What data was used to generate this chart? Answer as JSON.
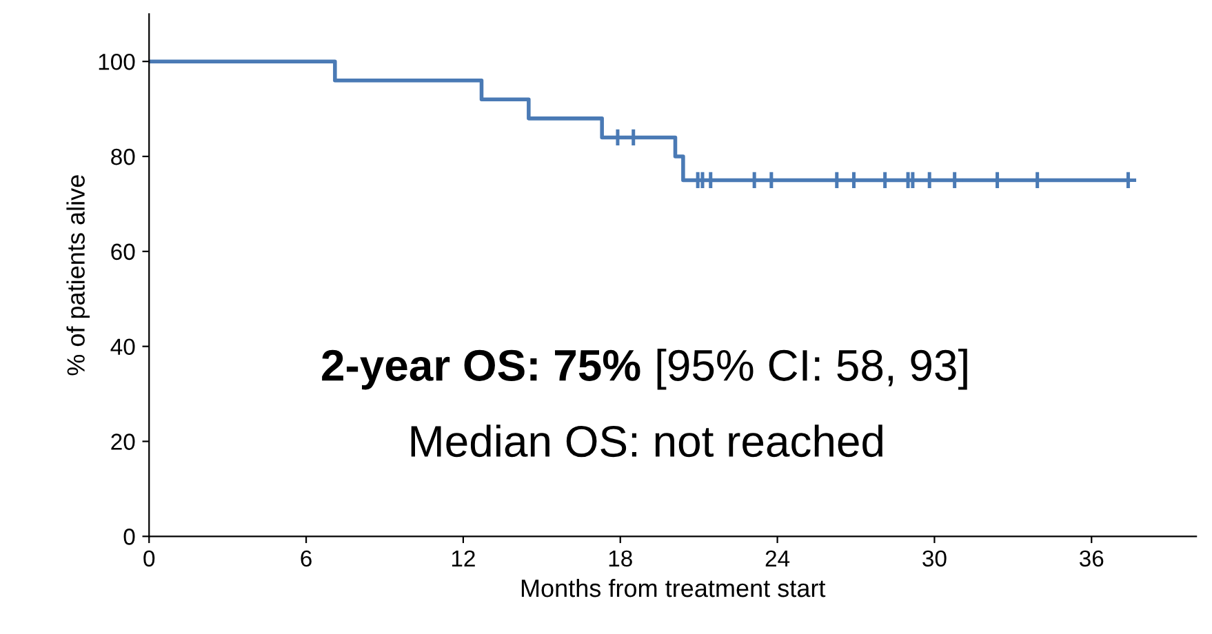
{
  "chart_data": {
    "type": "step",
    "xlabel": "Months from treatment start",
    "ylabel": "% of patients alive",
    "xlim": [
      0,
      40
    ],
    "xticks": [
      0,
      6,
      12,
      18,
      24,
      30,
      36
    ],
    "ylim": [
      0,
      110
    ],
    "yticks": [
      0,
      20,
      40,
      60,
      80,
      100
    ],
    "grid": false,
    "legend": false,
    "series": [
      {
        "color": "#4a7ab5",
        "marker": "none",
        "x": [
          0,
          7.1,
          12.7,
          14.5,
          17.3,
          20.1,
          20.4,
          37.4
        ],
        "values": [
          100,
          96,
          92,
          88,
          84,
          80,
          75,
          75
        ]
      },
      {
        "type": "scatter",
        "color": "#4a7ab5",
        "marker": "cross",
        "x": [
          17.9,
          18.5,
          20.96,
          21.14,
          21.45,
          23.12,
          23.77,
          26.27,
          26.92,
          28.11,
          28.99,
          29.17,
          29.81,
          30.77,
          32.4,
          33.93,
          37.4
        ],
        "values": [
          84,
          84,
          75,
          75,
          75,
          75,
          75,
          75,
          75,
          75,
          75,
          75,
          75,
          75,
          75,
          75,
          75
        ]
      }
    ],
    "annotations": [
      "2-year OS: 75%",
      "[95% CI: 58, 93]",
      "Median OS: not reached"
    ]
  }
}
